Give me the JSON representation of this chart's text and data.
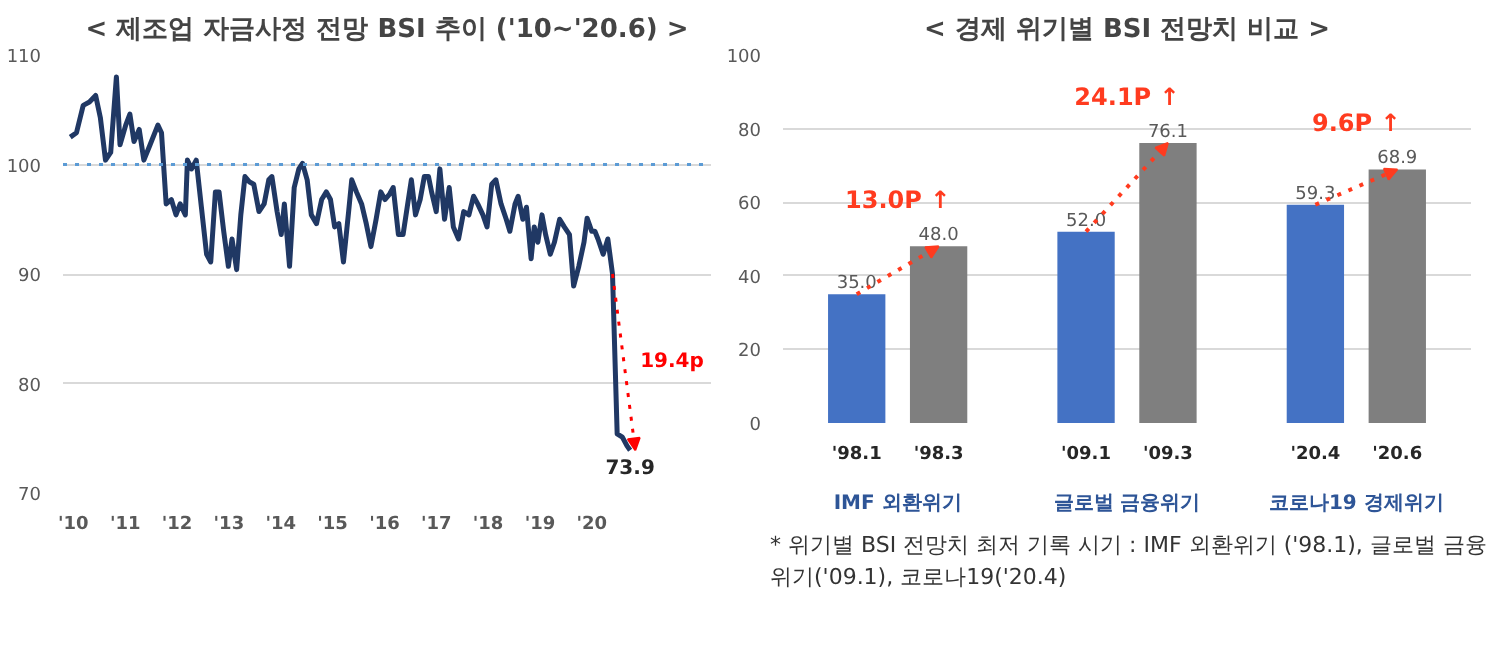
{
  "chart_data": [
    {
      "type": "line",
      "title": "< 제조업 자금사정 전망 BSI 추이 ('10~'20.6) >",
      "color": "#203864",
      "line_style": "solid",
      "marker": "none",
      "grid": "y",
      "x": [
        2009.94,
        2010.06,
        2010.19,
        2010.31,
        2010.43,
        2010.52,
        2010.62,
        2010.72,
        2010.83,
        2010.9,
        2011.01,
        2011.09,
        2011.17,
        2011.27,
        2011.36,
        2011.48,
        2011.63,
        2011.7,
        2011.79,
        2011.89,
        2011.98,
        2012.06,
        2012.16,
        2012.2,
        2012.28,
        2012.37,
        2012.47,
        2012.57,
        2012.65,
        2012.74,
        2012.81,
        2012.9,
        2012.99,
        2013.06,
        2013.15,
        2013.23,
        2013.31,
        2013.4,
        2013.48,
        2013.58,
        2013.68,
        2013.77,
        2013.83,
        2013.93,
        2014.01,
        2014.07,
        2014.17,
        2014.26,
        2014.35,
        2014.42,
        2014.51,
        2014.59,
        2014.69,
        2014.79,
        2014.88,
        2014.96,
        2015.04,
        2015.12,
        2015.21,
        2015.31,
        2015.37,
        2015.46,
        2015.56,
        2015.65,
        2015.74,
        2015.84,
        2015.93,
        2016.01,
        2016.1,
        2016.17,
        2016.27,
        2016.36,
        2016.44,
        2016.52,
        2016.6,
        2016.69,
        2016.77,
        2016.85,
        2016.91,
        2017.0,
        2017.07,
        2017.16,
        2017.25,
        2017.33,
        2017.43,
        2017.53,
        2017.63,
        2017.72,
        2017.8,
        2017.9,
        2017.98,
        2018.07,
        2018.15,
        2018.25,
        2018.35,
        2018.42,
        2018.52,
        2018.58,
        2018.67,
        2018.74,
        2018.83,
        2018.89,
        2018.96,
        2019.04,
        2019.11,
        2019.2,
        2019.28,
        2019.38,
        2019.47,
        2019.57,
        2019.65,
        2019.75,
        2019.85,
        2019.91,
        2020.0,
        2020.06,
        2020.12,
        2020.22,
        2020.31,
        2020.4,
        2020.49,
        2020.59,
        2020.68,
        2020.74
      ],
      "values": [
        102.5,
        102.9,
        105.4,
        105.7,
        106.3,
        104.3,
        100.4,
        101.1,
        108.0,
        101.8,
        103.6,
        104.6,
        102.1,
        103.2,
        100.4,
        101.8,
        103.6,
        102.9,
        96.4,
        96.8,
        95.4,
        96.4,
        95.4,
        100.4,
        99.6,
        100.4,
        96.1,
        91.8,
        91.1,
        97.5,
        97.5,
        93.9,
        90.7,
        93.2,
        90.4,
        95.4,
        98.9,
        98.4,
        98.2,
        95.7,
        96.4,
        98.6,
        98.9,
        95.7,
        93.6,
        96.4,
        90.7,
        97.9,
        99.6,
        100.1,
        98.6,
        95.4,
        94.6,
        96.8,
        97.5,
        96.8,
        94.3,
        94.6,
        91.1,
        95.7,
        98.6,
        97.5,
        96.4,
        94.6,
        92.5,
        95.0,
        97.5,
        96.8,
        97.3,
        97.9,
        93.6,
        93.6,
        96.1,
        98.6,
        95.4,
        96.8,
        98.9,
        98.9,
        97.5,
        95.7,
        99.6,
        95.0,
        97.9,
        94.3,
        93.2,
        95.7,
        95.4,
        97.1,
        96.4,
        95.4,
        94.3,
        98.2,
        98.6,
        96.4,
        95.0,
        93.9,
        96.4,
        97.1,
        95.0,
        96.1,
        91.4,
        94.3,
        92.9,
        95.4,
        93.6,
        91.8,
        92.9,
        95.0,
        94.3,
        93.6,
        88.9,
        90.7,
        92.9,
        95.1,
        93.9,
        93.9,
        93.2,
        91.8,
        93.2,
        90.0,
        75.4,
        75.1,
        74.3,
        73.9
      ],
      "xlim": [
        2009.8,
        2022.3
      ],
      "xticks": [
        {
          "value": 2010,
          "label": "'10"
        },
        {
          "value": 2011,
          "label": "'11"
        },
        {
          "value": 2012,
          "label": "'12"
        },
        {
          "value": 2013,
          "label": "'13"
        },
        {
          "value": 2014,
          "label": "'14"
        },
        {
          "value": 2015,
          "label": "'15"
        },
        {
          "value": 2016,
          "label": "'16"
        },
        {
          "value": 2017,
          "label": "'17"
        },
        {
          "value": 2018,
          "label": "'18"
        },
        {
          "value": 2019,
          "label": "'19"
        },
        {
          "value": 2020,
          "label": "'20"
        }
      ],
      "ylim": [
        70,
        110
      ],
      "yticks": [
        70,
        80,
        90,
        100,
        110
      ],
      "ref_lines": [
        {
          "axis": "y",
          "value": 100,
          "color": "#5b9bd5",
          "line_style": "dotted"
        }
      ],
      "annotations": [
        {
          "text": "73.9",
          "x": 2020.74,
          "y": 73.9
        },
        "19.4p"
      ]
    },
    {
      "type": "bar",
      "title": "< 경제 위기별 BSI 전망치 비교 >",
      "categories": [
        "'98.1",
        "'98.3",
        "'09.1",
        "'09.3",
        "'20.4",
        "'20.6"
      ],
      "values": [
        35.0,
        48.0,
        52.0,
        76.1,
        59.3,
        68.9
      ],
      "colors": [
        "#4472c4",
        "#7f7f7f",
        "#4472c4",
        "#7f7f7f",
        "#4472c4",
        "#7f7f7f"
      ],
      "value_labels": [
        "35.0",
        "48.0",
        "52.0",
        "76.1",
        "59.3",
        "68.9"
      ],
      "ylim": [
        0,
        100
      ],
      "yticks": [
        0,
        20,
        40,
        60,
        80,
        100
      ],
      "grid": "y",
      "annotations": [
        "13.0P ↑",
        "24.1P ↑",
        "9.6P ↑",
        "IMF 외환위기",
        "글로벌 금융위기",
        "코로나19 경제위기",
        "* 위기별 BSI 전망치 최저 기록 시기 : IMF 외환위기 ('98.1), 글로벌 금융위기('09.1), 코로나19('20.4)"
      ]
    }
  ]
}
